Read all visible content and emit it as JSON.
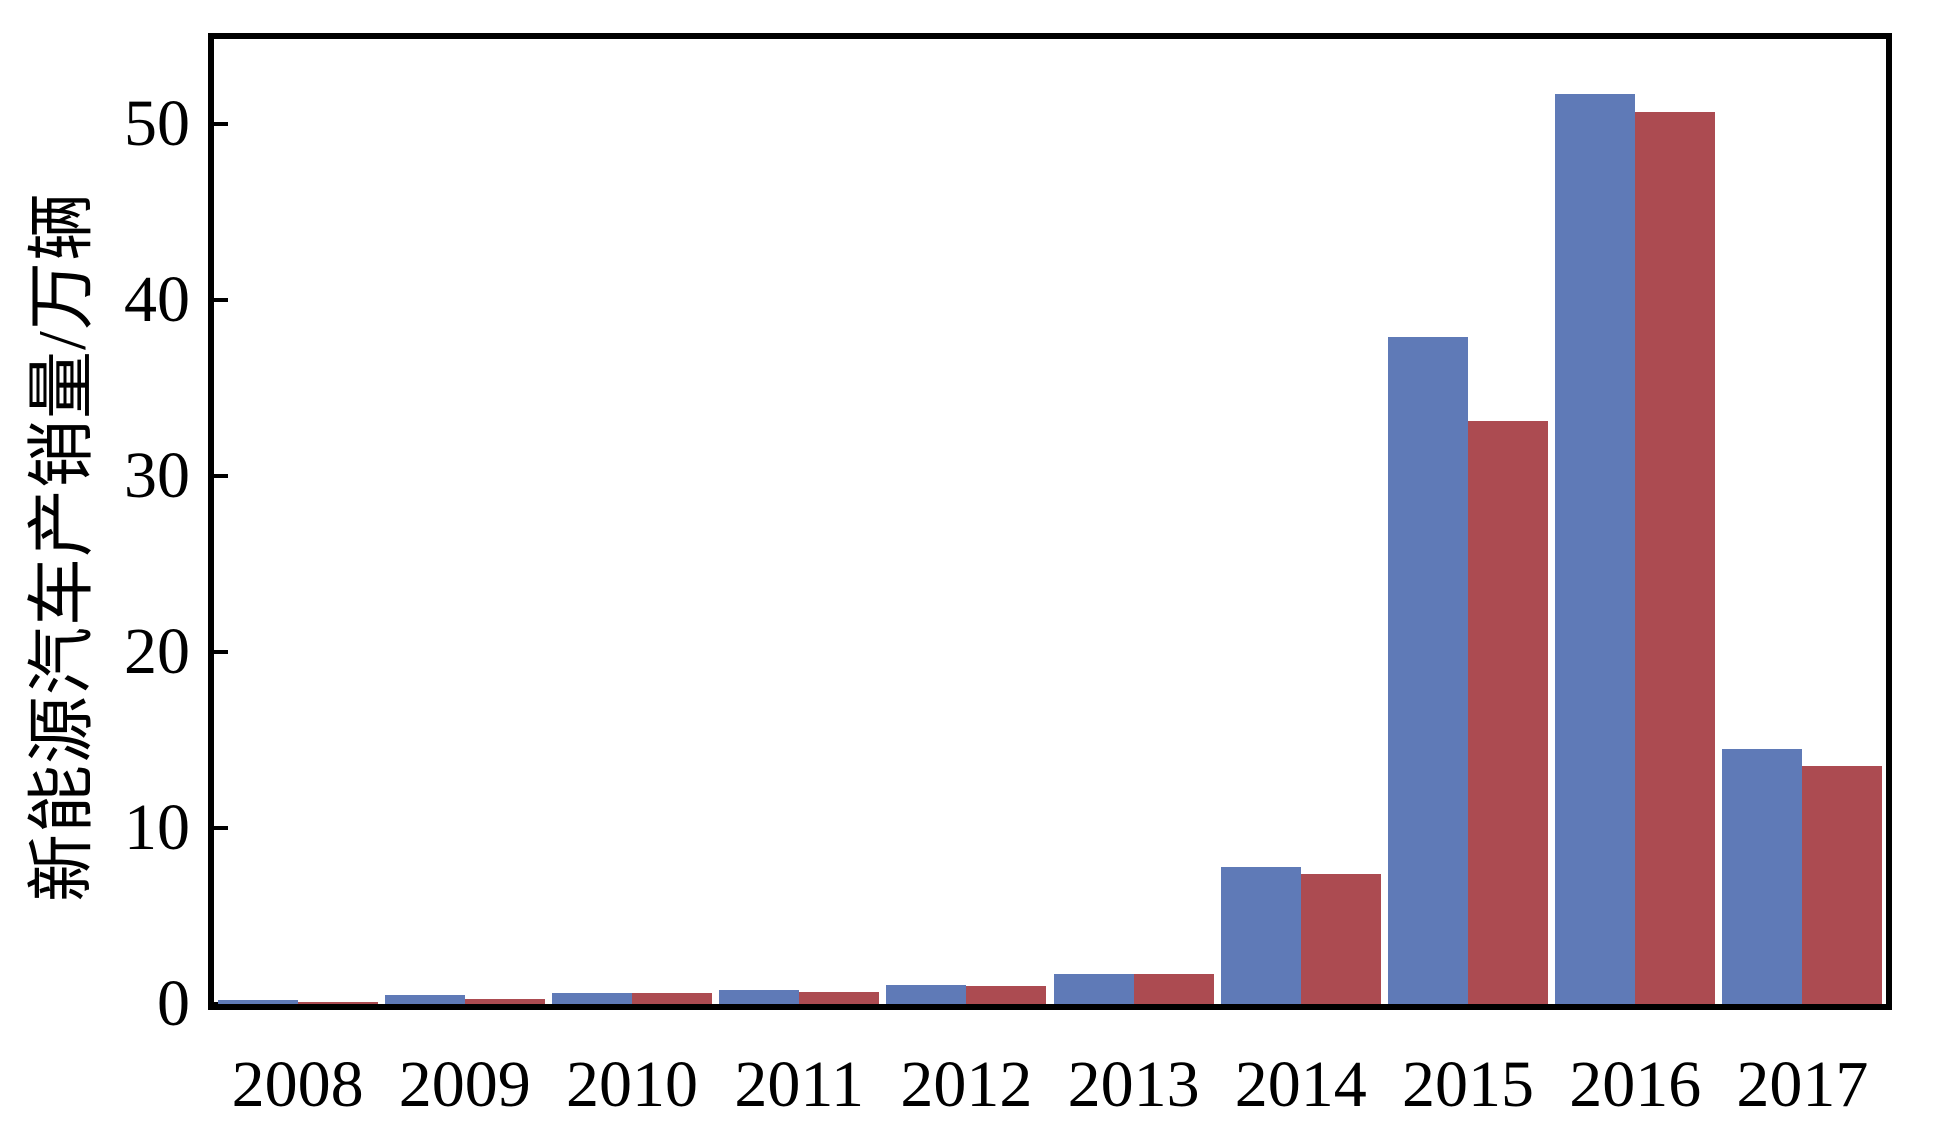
{
  "chart_data": {
    "type": "bar",
    "title": "",
    "xlabel": "",
    "ylabel": "新能源汽车产销量/万辆",
    "unit_label": "万辆",
    "categories": [
      "2008",
      "2009",
      "2010",
      "2011",
      "2012",
      "2013",
      "2014",
      "2015",
      "2016",
      "2017"
    ],
    "series": [
      {
        "name": "series-blue",
        "color": "#5F7AB7",
        "values": [
          0.2,
          0.5,
          0.6,
          0.8,
          1.1,
          1.7,
          7.8,
          37.9,
          51.7,
          14.5
        ]
      },
      {
        "name": "series-red",
        "color": "#AC4B51",
        "values": [
          0.1,
          0.3,
          0.6,
          0.7,
          1.0,
          1.7,
          7.4,
          33.1,
          50.7,
          13.5
        ]
      }
    ],
    "yticks": [
      0,
      10,
      20,
      30,
      40,
      50
    ],
    "ylim": [
      0,
      54.8
    ],
    "grid": false,
    "legend_position": "none",
    "axis_color": "#000000",
    "background_color": "#ffffff"
  }
}
